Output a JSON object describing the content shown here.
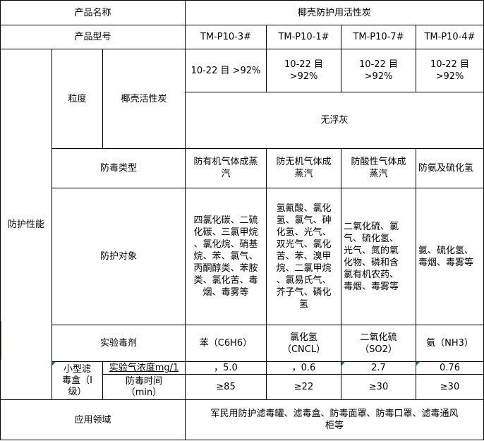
{
  "product_name_label": "产品名称",
  "product_name": "椰壳防护用活性炭",
  "model_label": "产品型号",
  "models": [
    "TM-P10-3#",
    "TM-P10-1#",
    "TM-P10-7#",
    "TM-P10-4#"
  ],
  "performance_label": "防护性能",
  "granularity_label": "粒度",
  "material_label": "椰壳活性炭",
  "mesh": [
    "10-22 目 >92%",
    "10-22 目\n>92%",
    "10-22 目\n>92%",
    "10-22 目\n>92%"
  ],
  "dust": "无浮灰",
  "type_label": "防毒类型",
  "types": [
    "防有机气体成蒸\n汽",
    "防无机气体成\n蒸汽",
    "防酸性气体成\n蒸汽",
    "防氨及硫化氢"
  ],
  "target_label": "防护对象",
  "targets": [
    "四氯化碳、二硫\n化碳、三氯甲烷\n、氯化烷、硝基\n烷、苯、氯气、\n丙酮醇类、苯胺\n类、氯化苦、毒\n烟、毒雾等",
    "氢氰酸、氯化\n氢、氯气、砷\n化氢、光气、\n双光气、氯化\n苦、苯、溴甲\n烷、二氯甲烷\n、氯易氏气、\n芥子气、磷化\n氢",
    "二氧化硫、氯\n气、硫化氢、\n光气、氮的氧\n化物、磷和含\n氯有机农药、\n毒烟、毒雾等",
    "氨、硫化氢、\n毒烟、毒雾等"
  ],
  "agent_label": "实验毒剂",
  "agents": [
    "苯（C6H6）",
    "氯化氢\n（CNCL）",
    "二氧化硫\n（SO2）",
    "氨（NH3）"
  ],
  "canister_label": "小型滤\n毒盒（I\n级）",
  "concentration_label": "实验气浓度mg/1",
  "concentrations": [
    "，5.0",
    "，0.6",
    "2.7",
    "0.76"
  ],
  "time_label": "防毒时间\n（min）",
  "times": [
    "≥85",
    "≥22",
    "≥30",
    "≥30"
  ],
  "application_label": "应用领域",
  "application": "军民用防护滤毒罐、滤毒盒、防毒面罩、防毒口罩、滤毒通风\n柜等"
}
